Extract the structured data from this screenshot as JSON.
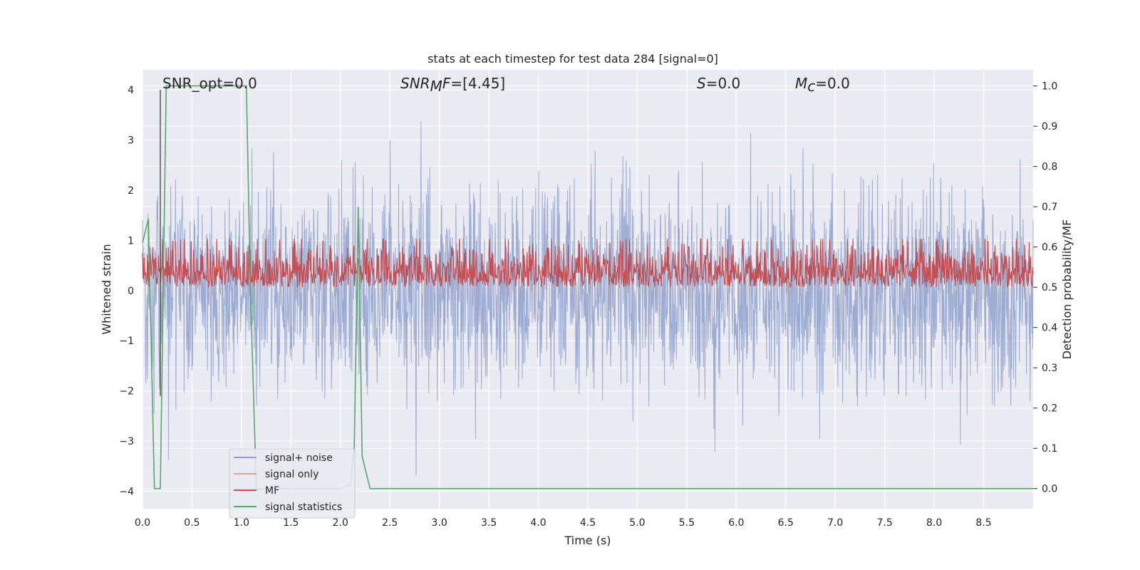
{
  "chart_data": {
    "type": "line",
    "title": "stats at each timestep for test data 284 [signal=0]",
    "xlabel": "Time (s)",
    "ylabel_left": "Whitened strain",
    "ylabel_right": "Detection probability/MF",
    "xlim": [
      0.0,
      9.0
    ],
    "ylim_left": [
      -4.35,
      4.4
    ],
    "ylim_right": [
      -0.05,
      1.04
    ],
    "xticks": [
      "0.0",
      "0.5",
      "1.0",
      "1.5",
      "2.0",
      "2.5",
      "3.0",
      "3.5",
      "4.0",
      "4.5",
      "5.0",
      "5.5",
      "6.0",
      "6.5",
      "7.0",
      "7.5",
      "8.0",
      "8.5"
    ],
    "yticks_left": [
      "−4",
      "−3",
      "−2",
      "−1",
      "0",
      "1",
      "2",
      "3",
      "4"
    ],
    "yticks_right": [
      "0.0",
      "0.1",
      "0.2",
      "0.3",
      "0.4",
      "0.5",
      "0.6",
      "0.7",
      "0.8",
      "0.9",
      "1.0"
    ],
    "grid": true,
    "legend_position": "lower-left",
    "annotations": {
      "snr_opt": "SNR_opt=0.0",
      "snr_mf_italic": "SNR",
      "snr_mf_sub": "M",
      "snr_mf_italic2": "F",
      "snr_mf_value": "=[4.45]",
      "s_italic": "S",
      "s_value": "=0.0",
      "mc_italic": "M",
      "mc_sub": "c",
      "mc_value": "=0.0"
    },
    "series": [
      {
        "name": "signal+ noise",
        "color": "#8da0cb",
        "kind": "noise",
        "axis": "left",
        "amplitude_range": [
          -4.0,
          4.0
        ],
        "typical_std": 1.0
      },
      {
        "name": "signal only",
        "color": "#e8a07e",
        "kind": "flat",
        "axis": "left",
        "values_y": 0.0
      },
      {
        "name": "MF",
        "color": "#c44e52",
        "kind": "noise-band",
        "axis": "right",
        "band": [
          0.5,
          0.62
        ]
      },
      {
        "name": "signal statistics",
        "color": "#55a868",
        "axis": "right",
        "x": [
          0.0,
          0.06,
          0.12,
          0.18,
          0.24,
          1.05,
          1.09,
          1.15,
          2.0,
          2.1,
          2.14,
          2.18,
          2.22,
          2.3,
          9.0
        ],
        "y": [
          0.61,
          0.67,
          0.0,
          0.0,
          1.0,
          1.0,
          0.5,
          0.0,
          0.0,
          0.01,
          0.1,
          0.7,
          0.08,
          0.0,
          0.0
        ]
      },
      {
        "name": "",
        "color": "#4c4c4c",
        "kind": "vline",
        "axis": "left",
        "x": 0.18,
        "y": [
          -2.1,
          4.0
        ]
      }
    ]
  }
}
